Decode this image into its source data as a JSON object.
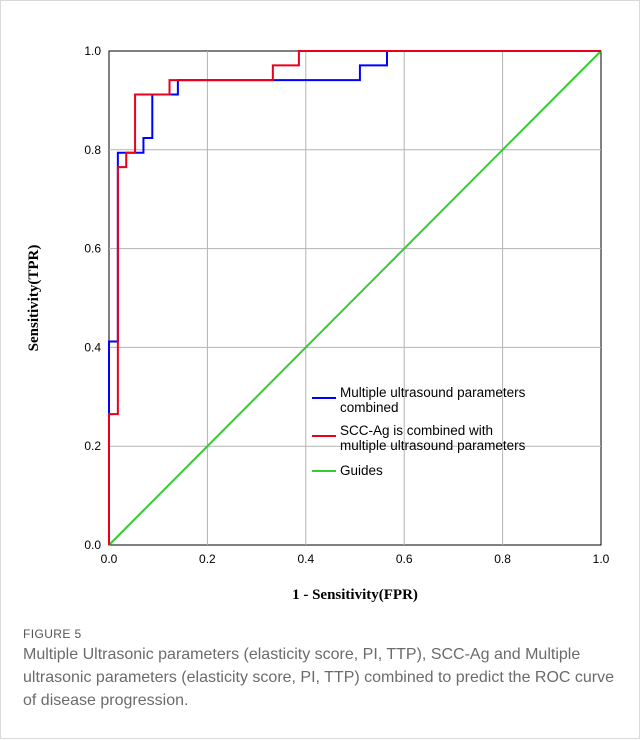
{
  "chart_data": {
    "type": "line",
    "xlabel": "1 - Sensitivity(FPR)",
    "ylabel": "Sensitivity(TPR)",
    "xlim": [
      0.0,
      1.0
    ],
    "ylim": [
      0.0,
      1.0
    ],
    "xticks": [
      "0.0",
      "0.2",
      "0.4",
      "0.6",
      "0.8",
      "1.0"
    ],
    "yticks": [
      "0.0",
      "0.2",
      "0.4",
      "0.6",
      "0.8",
      "1.0"
    ],
    "grid": true,
    "legend_position": "bottom-right",
    "series": [
      {
        "name": "Multiple ultrasound parameters combined",
        "color": "#0000ff",
        "points": [
          [
            0,
            0
          ],
          [
            0,
            0.265
          ],
          [
            0,
            0.412
          ],
          [
            0.018,
            0.412
          ],
          [
            0.018,
            0.794
          ],
          [
            0.07,
            0.794
          ],
          [
            0.07,
            0.824
          ],
          [
            0.088,
            0.824
          ],
          [
            0.088,
            0.912
          ],
          [
            0.14,
            0.912
          ],
          [
            0.14,
            0.941
          ],
          [
            0.51,
            0.941
          ],
          [
            0.51,
            0.971
          ],
          [
            0.565,
            0.971
          ],
          [
            0.565,
            1.0
          ],
          [
            1.0,
            1.0
          ]
        ]
      },
      {
        "name": "SCC-Ag is combined with multiple ultrasound parameters",
        "color": "#e8001c",
        "points": [
          [
            0,
            0
          ],
          [
            0,
            0.265
          ],
          [
            0.018,
            0.265
          ],
          [
            0.018,
            0.765
          ],
          [
            0.035,
            0.765
          ],
          [
            0.035,
            0.794
          ],
          [
            0.053,
            0.794
          ],
          [
            0.053,
            0.912
          ],
          [
            0.123,
            0.912
          ],
          [
            0.123,
            0.941
          ],
          [
            0.333,
            0.941
          ],
          [
            0.333,
            0.971
          ],
          [
            0.386,
            0.971
          ],
          [
            0.386,
            1.0
          ],
          [
            1.0,
            1.0
          ]
        ]
      },
      {
        "name": "Guides",
        "color": "#33cc33",
        "points": [
          [
            0,
            0
          ],
          [
            1,
            1
          ]
        ]
      }
    ]
  },
  "caption": {
    "label": "FIGURE 5",
    "text": "Multiple Ultrasonic parameters (elasticity score, PI, TTP), SCC-Ag and Multiple ultrasonic parameters (elasticity score, PI, TTP) combined to predict the ROC curve of disease progression."
  },
  "legend": {
    "line1a": "Multiple ultrasound parameters",
    "line1b": "combined",
    "line2a": "SCC-Ag is combined with",
    "line2b": "multiple ultrasound parameters",
    "line3": "Guides"
  }
}
